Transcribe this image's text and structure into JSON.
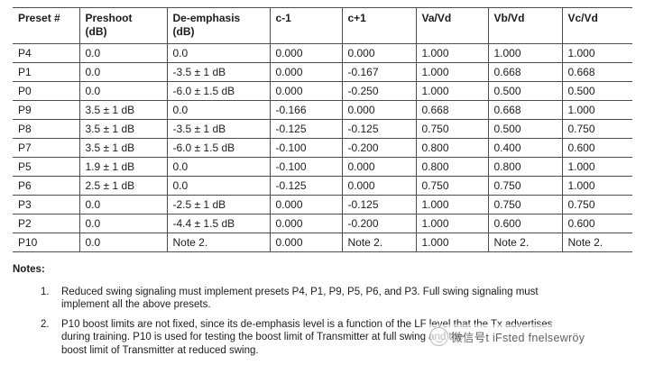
{
  "table": {
    "headers": [
      "Preset #",
      "Preshoot\n(dB)",
      "De-emphasis\n(dB)",
      "c-1",
      "c+1",
      "Va/Vd",
      "Vb/Vd",
      "Vc/Vd"
    ],
    "rows": [
      [
        "P4",
        "0.0",
        "0.0",
        "0.000",
        "0.000",
        "1.000",
        "1.000",
        "1.000"
      ],
      [
        "P1",
        "0.0",
        "-3.5 ± 1 dB",
        "0.000",
        "-0.167",
        "1.000",
        "0.668",
        "0.668"
      ],
      [
        "P0",
        "0.0",
        "-6.0 ± 1.5 dB",
        "0.000",
        "-0.250",
        "1.000",
        "0.500",
        "0.500"
      ],
      [
        "P9",
        "3.5 ± 1 dB",
        "0.0",
        "-0.166",
        "0.000",
        "0.668",
        "0.668",
        "1.000"
      ],
      [
        "P8",
        "3.5 ± 1 dB",
        "-3.5 ± 1 dB",
        "-0.125",
        "-0.125",
        "0.750",
        "0.500",
        "0.750"
      ],
      [
        "P7",
        "3.5 ± 1 dB",
        "-6.0 ± 1.5 dB",
        "-0.100",
        "-0.200",
        "0.800",
        "0.400",
        "0.600"
      ],
      [
        "P5",
        "1.9 ± 1 dB",
        "0.0",
        "-0.100",
        "0.000",
        "0.800",
        "0.800",
        "1.000"
      ],
      [
        "P6",
        "2.5 ± 1 dB",
        "0.0",
        "-0.125",
        "0.000",
        "0.750",
        "0.750",
        "1.000"
      ],
      [
        "P3",
        "0.0",
        "-2.5 ± 1 dB",
        "0.000",
        "-0.125",
        "1.000",
        "0.750",
        "0.750"
      ],
      [
        "P2",
        "0.0",
        "-4.4 ± 1.5 dB",
        "0.000",
        "-0.200",
        "1.000",
        "0.600",
        "0.600"
      ],
      [
        "P10",
        "0.0",
        "Note 2.",
        "0.000",
        "Note 2.",
        "1.000",
        "Note 2.",
        "Note 2."
      ]
    ]
  },
  "notes": {
    "heading": "Notes:",
    "items": [
      {
        "number": "1.",
        "text": "Reduced swing signaling must implement presets P4, P1, P9, P5, P6, and P3. Full swing signaling must\nimplement all the above presets."
      },
      {
        "number": "2.",
        "text": "P10 boost limits are not fixed, since its de-emphasis level is a function of the LF level that the Tx advertises\nduring training. P10 is used for testing the boost limit of Transmitter at full swing and the\nboost limit of Transmitter at reduced swing."
      }
    ]
  },
  "watermark": {
    "icon": "wechat-stamp-icon",
    "text": "微信号t iFsted fnelsewröy"
  },
  "colors": {
    "border": "#4d4d4d",
    "text": "#1c1c1c",
    "background": "#ffffff"
  }
}
